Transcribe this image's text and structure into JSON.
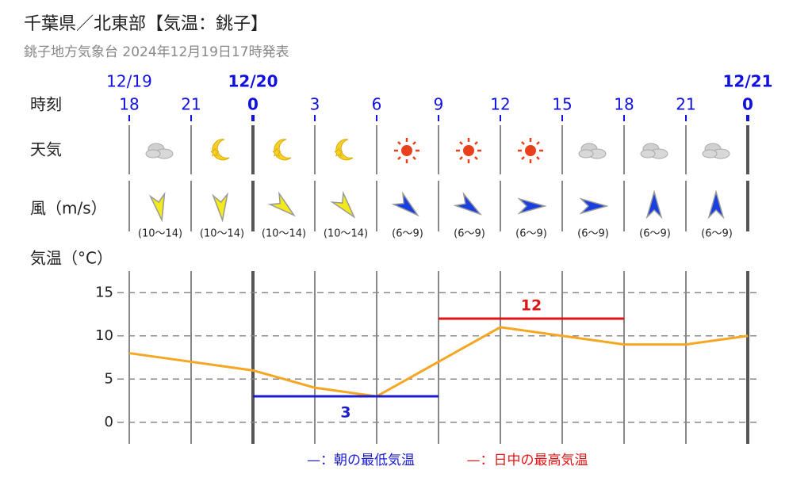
{
  "header": {
    "title": "千葉県／北東部【気温：銚子】",
    "subtitle": "銚子地方気象台 2024年12月19日17時発表"
  },
  "chart_data": {
    "type": "line",
    "row_labels": [
      "時刻",
      "天気",
      "風（m/s）",
      "気温（°C）"
    ],
    "dates": [
      "12/19",
      null,
      "12/20",
      null,
      null,
      null,
      null,
      null,
      null,
      null,
      "12/21"
    ],
    "x": [
      "18",
      "21",
      "0",
      "3",
      "6",
      "9",
      "12",
      "15",
      "18",
      "21",
      "0"
    ],
    "wind_labels": [
      "(10〜14)",
      "(10〜14)",
      "(10〜14)",
      "(10〜14)",
      "(6〜9)",
      "(6〜9)",
      "(6〜9)",
      "(6〜9)",
      "(6〜9)",
      "(6〜9)"
    ],
    "series": [
      {
        "color": "#f5a623",
        "values": [
          8,
          7,
          6,
          4,
          3,
          7,
          11,
          10,
          9,
          9,
          10
        ]
      },
      {
        "name": "—：朝の最低気温",
        "color": "#1c1ccf",
        "values": [
          null,
          null,
          3,
          3,
          3,
          3,
          null,
          null,
          null,
          null,
          null
        ]
      },
      {
        "name": "—：日中の最高気温",
        "color": "#e01414",
        "values": [
          null,
          null,
          null,
          null,
          null,
          12,
          12,
          12,
          12,
          null,
          null
        ]
      }
    ],
    "ylim": [
      -2.5,
      17.5
    ],
    "yticks": [
      0,
      5,
      10,
      15
    ],
    "grid": true
  }
}
